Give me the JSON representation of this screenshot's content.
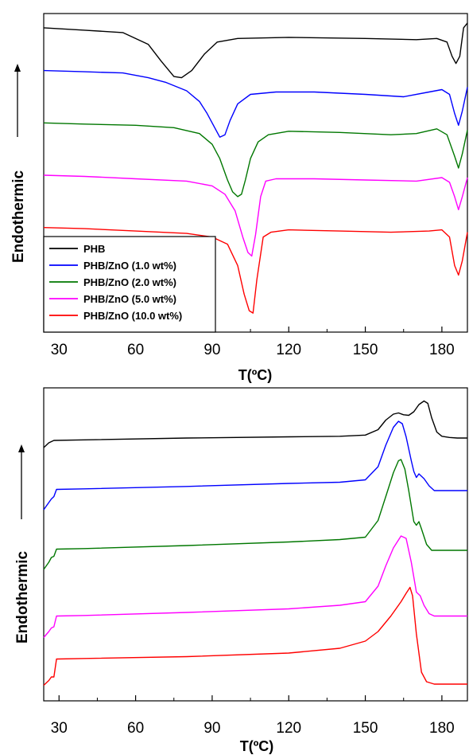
{
  "chart_data": [
    {
      "type": "line",
      "xlabel": "T(ºC)",
      "ylabel": "Endothermic",
      "xlim": [
        24,
        190
      ],
      "xticks": [
        30,
        60,
        90,
        120,
        150,
        180
      ],
      "yticks_shown": false,
      "legend_placement": "bottom-left",
      "series": [
        {
          "name": "PHB",
          "color": "#000000",
          "x": [
            24,
            40,
            55,
            65,
            70,
            75,
            78,
            82,
            87,
            92,
            100,
            120,
            150,
            170,
            178,
            182,
            184,
            185.5,
            187,
            188.5,
            190
          ],
          "y": [
            10.0,
            9.9,
            9.8,
            9.3,
            8.6,
            7.95,
            7.9,
            8.2,
            8.9,
            9.4,
            9.55,
            9.6,
            9.55,
            9.5,
            9.55,
            9.4,
            8.8,
            8.5,
            8.8,
            10.0,
            10.2
          ]
        },
        {
          "name": "PHB/ZnO (1.0 wt%)",
          "color": "#0000ff",
          "x": [
            24,
            40,
            55,
            65,
            72,
            80,
            85,
            88,
            91,
            93,
            95,
            97,
            100,
            105,
            115,
            130,
            150,
            165,
            175,
            180,
            183,
            185,
            186.5,
            188,
            190
          ],
          "y": [
            8.2,
            8.15,
            8.1,
            7.9,
            7.7,
            7.35,
            6.9,
            6.4,
            5.8,
            5.4,
            5.5,
            6.1,
            6.8,
            7.2,
            7.3,
            7.3,
            7.2,
            7.1,
            7.3,
            7.4,
            7.2,
            6.4,
            5.9,
            6.5,
            7.5
          ]
        },
        {
          "name": "PHB/ZnO (2.0 wt%)",
          "color": "#007700",
          "x": [
            24,
            40,
            60,
            75,
            85,
            90,
            93,
            96,
            98,
            100,
            101.5,
            103,
            105,
            108,
            112,
            120,
            140,
            160,
            170,
            178,
            182,
            185,
            186.5,
            188,
            190
          ],
          "y": [
            6.0,
            5.95,
            5.9,
            5.8,
            5.55,
            5.1,
            4.5,
            3.6,
            3.1,
            2.9,
            3.0,
            3.6,
            4.5,
            5.2,
            5.5,
            5.65,
            5.6,
            5.5,
            5.55,
            5.75,
            5.5,
            4.6,
            4.1,
            4.7,
            5.7
          ]
        },
        {
          "name": "PHB/ZnO (5.0 wt%)",
          "color": "#ff00ff",
          "x": [
            24,
            40,
            60,
            80,
            90,
            95,
            99,
            102,
            104,
            105.5,
            107,
            109,
            111,
            115,
            130,
            150,
            170,
            180,
            183,
            185,
            186.5,
            188,
            190
          ],
          "y": [
            3.8,
            3.75,
            3.65,
            3.55,
            3.35,
            3.0,
            2.3,
            1.2,
            0.55,
            0.4,
            1.3,
            2.9,
            3.55,
            3.65,
            3.65,
            3.6,
            3.55,
            3.7,
            3.5,
            2.9,
            2.35,
            2.9,
            3.7
          ]
        },
        {
          "name": "PHB/ZnO (10.0 wt%)",
          "color": "#ff0000",
          "x": [
            24,
            40,
            60,
            80,
            90,
            96,
            100,
            102.5,
            104.5,
            106,
            107.5,
            110,
            113,
            120,
            140,
            160,
            175,
            180,
            183,
            185,
            186.5,
            188,
            190
          ],
          "y": [
            1.6,
            1.55,
            1.45,
            1.35,
            1.2,
            0.9,
            0.0,
            -1.2,
            -1.9,
            -2.0,
            -0.6,
            1.2,
            1.4,
            1.5,
            1.45,
            1.4,
            1.45,
            1.5,
            1.2,
            0.0,
            -0.4,
            0.2,
            1.4
          ]
        }
      ]
    },
    {
      "type": "line",
      "xlabel": "T(ºC)",
      "ylabel": "Endothermic",
      "xlim": [
        24,
        190
      ],
      "xticks": [
        30,
        60,
        90,
        120,
        150,
        180
      ],
      "yticks_shown": false,
      "series": [
        {
          "name": "PHB",
          "color": "#000000",
          "x": [
            24,
            26,
            28,
            40,
            80,
            120,
            140,
            150,
            155,
            158,
            161,
            163,
            165,
            167,
            169,
            171,
            173,
            174.5,
            176,
            178,
            180,
            183,
            186,
            190
          ],
          "y": [
            2.6,
            3.0,
            3.2,
            3.25,
            3.4,
            3.5,
            3.55,
            3.65,
            4.1,
            4.9,
            5.4,
            5.5,
            5.35,
            5.3,
            5.6,
            6.2,
            6.5,
            6.3,
            5.1,
            3.9,
            3.55,
            3.45,
            3.4,
            3.4
          ]
        },
        {
          "name": "PHB/ZnO (1.0 wt%)",
          "color": "#0000ff",
          "x": [
            24,
            26,
            27,
            28,
            29,
            40,
            80,
            120,
            140,
            150,
            155,
            158,
            161,
            163,
            164.5,
            166,
            168,
            169,
            170,
            171,
            172,
            173,
            175,
            177,
            190
          ],
          "y": [
            -2.6,
            -2.0,
            -1.7,
            -1.5,
            -0.9,
            -0.85,
            -0.65,
            -0.4,
            -0.3,
            -0.1,
            1.0,
            2.8,
            4.3,
            4.8,
            4.6,
            3.5,
            1.5,
            0.6,
            0.1,
            0.4,
            0.2,
            0.0,
            -0.6,
            -1.0,
            -1.0
          ]
        },
        {
          "name": "PHB/ZnO (2.0 wt%)",
          "color": "#007700",
          "x": [
            24,
            26,
            27,
            28,
            29,
            40,
            80,
            120,
            140,
            150,
            155,
            158,
            161,
            163,
            164,
            165.5,
            167,
            169,
            170,
            171,
            172,
            174,
            176,
            190
          ],
          "y": [
            -7.6,
            -7.0,
            -6.6,
            -6.5,
            -5.9,
            -5.85,
            -5.6,
            -5.3,
            -5.1,
            -4.9,
            -3.5,
            -1.5,
            0.5,
            1.5,
            1.6,
            0.8,
            -1.0,
            -3.6,
            -3.9,
            -3.6,
            -4.2,
            -5.5,
            -6.0,
            -6.0
          ]
        },
        {
          "name": "PHB/ZnO (5.0 wt%)",
          "color": "#ff00ff",
          "x": [
            24,
            26,
            27,
            28,
            29,
            40,
            80,
            120,
            140,
            150,
            155,
            158,
            161,
            164,
            166,
            168,
            170,
            171.5,
            173,
            175,
            177,
            190
          ],
          "y": [
            -13.3,
            -12.8,
            -12.5,
            -12.4,
            -11.5,
            -11.45,
            -11.2,
            -10.9,
            -10.6,
            -10.3,
            -9.0,
            -7.3,
            -5.8,
            -4.8,
            -5.0,
            -7.0,
            -9.5,
            -9.8,
            -10.6,
            -11.3,
            -11.5,
            -11.5
          ]
        },
        {
          "name": "PHB/ZnO (10.0 wt%)",
          "color": "#ff0000",
          "x": [
            24,
            26,
            27,
            28,
            29,
            40,
            80,
            120,
            140,
            150,
            155,
            160,
            164,
            166,
            167.5,
            168.5,
            170,
            172,
            174,
            177,
            182,
            190
          ],
          "y": [
            -17.3,
            -16.9,
            -16.6,
            -16.6,
            -15.1,
            -15.05,
            -14.9,
            -14.6,
            -14.2,
            -13.6,
            -12.8,
            -11.5,
            -10.3,
            -9.6,
            -9.1,
            -9.8,
            -13.0,
            -16.2,
            -17.0,
            -17.2,
            -17.2,
            -17.2
          ]
        }
      ]
    }
  ]
}
